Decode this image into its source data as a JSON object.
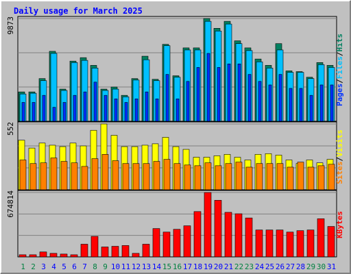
{
  "chart_data": {
    "type": "bar",
    "title": "Daily usage for March 2025",
    "categories": [
      "1",
      "2",
      "3",
      "4",
      "5",
      "6",
      "7",
      "8",
      "9",
      "10",
      "11",
      "12",
      "13",
      "14",
      "15",
      "16",
      "17",
      "18",
      "19",
      "20",
      "21",
      "22",
      "23",
      "24",
      "25",
      "26",
      "27",
      "28",
      "29",
      "30",
      "31"
    ],
    "category_colors": [
      "#008040",
      "#008040",
      "#0000ff",
      "#0000ff",
      "#0000ff",
      "#0000ff",
      "#0000ff",
      "#008040",
      "#008040",
      "#0000ff",
      "#0000ff",
      "#0000ff",
      "#0000ff",
      "#0000ff",
      "#008040",
      "#008040",
      "#0000ff",
      "#0000ff",
      "#0000ff",
      "#0000ff",
      "#0000ff",
      "#008040",
      "#008040",
      "#0000ff",
      "#0000ff",
      "#0000ff",
      "#0000ff",
      "#0000ff",
      "#008040",
      "#008040",
      "#0000ff"
    ],
    "legend_separator": "/",
    "panels": [
      {
        "ylim": [
          0,
          9873
        ],
        "yticks": [
          9873
        ],
        "series": [
          {
            "name": "Hits",
            "color": "#008060",
            "values": [
              2820,
              2820,
              4100,
              6720,
              3090,
              5780,
              6110,
              5370,
              3090,
              3290,
              2490,
              4100,
              6250,
              4030,
              7390,
              4370,
              7050,
              7050,
              9873,
              8930,
              9600,
              7730,
              7050,
              5980,
              5370,
              7460,
              4840,
              4770,
              4230,
              5640,
              5370
            ]
          },
          {
            "name": "Files",
            "color": "#00c0ff",
            "values": [
              2620,
              2690,
              3900,
              6520,
              2960,
              5640,
              5850,
              5110,
              2960,
              3090,
              2350,
              3960,
              5910,
              3900,
              7260,
              4230,
              6850,
              6850,
              9600,
              8670,
              9340,
              7460,
              6790,
              5710,
              5110,
              6850,
              4700,
              4700,
              4100,
              5440,
              5170
            ]
          },
          {
            "name": "Pages",
            "color": "#0030ff",
            "values": [
              1810,
              1810,
              2490,
              1340,
              1810,
              2490,
              2820,
              3760,
              2490,
              2150,
              1810,
              2150,
              2820,
              2150,
              4500,
              2150,
              3830,
              5170,
              6520,
              5170,
              5510,
              5510,
              4500,
              3830,
              3490,
              4500,
              3160,
              3160,
              2490,
              3490,
              3490
            ]
          }
        ]
      },
      {
        "ylim": [
          0,
          552
        ],
        "yticks": [
          552
        ],
        "series": [
          {
            "name": "Visits",
            "color": "#ffff00",
            "values": [
              416,
              350,
              392,
              374,
              362,
              392,
              368,
              499,
              552,
              457,
              362,
              362,
              374,
              386,
              440,
              362,
              339,
              273,
              273,
              285,
              297,
              273,
              250,
              297,
              303,
              291,
              250,
              220,
              250,
              226,
              255
            ]
          },
          {
            "name": "Sites",
            "color": "#ff8000",
            "values": [
              250,
              220,
              226,
              267,
              238,
              226,
              196,
              261,
              297,
              244,
              220,
              220,
              220,
              238,
              255,
              220,
              208,
              202,
              226,
              202,
              220,
              232,
              190,
              220,
              220,
              220,
              190,
              232,
              190,
              202,
              214
            ]
          }
        ]
      },
      {
        "ylim": [
          0,
          674814
        ],
        "yticks": [
          674814
        ],
        "series": [
          {
            "name": "KBytes",
            "color": "#ff0000",
            "values": [
              22200,
              22200,
              51900,
              37000,
              29700,
              22200,
              133000,
              215000,
              104000,
              111000,
              119000,
              37000,
              133000,
              297000,
              260000,
              289000,
              326000,
              475000,
              674814,
              593000,
              467000,
              452000,
              408000,
              282000,
              282000,
              282000,
              260000,
              275000,
              282000,
              400000,
              319000
            ]
          }
        ]
      }
    ]
  }
}
